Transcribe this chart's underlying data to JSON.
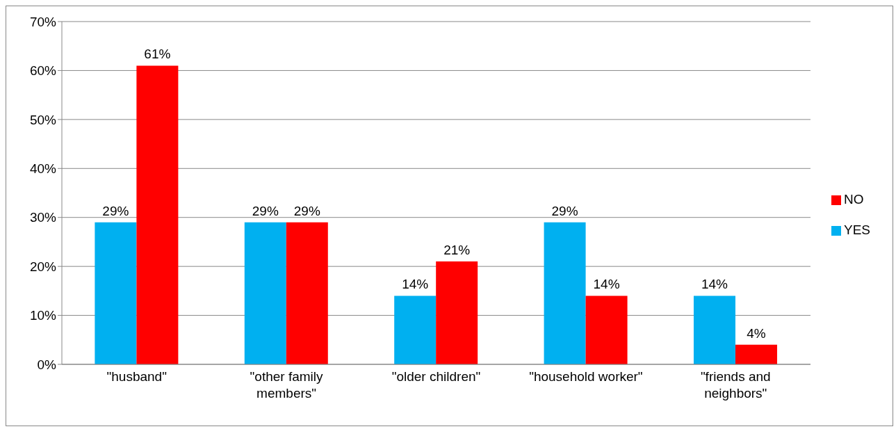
{
  "chart_data": {
    "type": "bar",
    "categories": [
      "\"husband\"",
      "\"other family members\"",
      "\"older children\"",
      "\"household worker\"",
      "\"friends and neighbors\""
    ],
    "series": [
      {
        "name": "YES",
        "color": "#00b0f0",
        "values": [
          29,
          29,
          14,
          29,
          14
        ],
        "value_labels": [
          "29%",
          "29%",
          "14%",
          "29%",
          "14%"
        ]
      },
      {
        "name": "NO",
        "color": "#ff0000",
        "values": [
          61,
          29,
          21,
          14,
          4
        ],
        "value_labels": [
          "61%",
          "29%",
          "21%",
          "14%",
          "4%"
        ]
      }
    ],
    "ylim": [
      0,
      70
    ],
    "yticks": [
      {
        "value": 0,
        "label": "0%"
      },
      {
        "value": 10,
        "label": "10%"
      },
      {
        "value": 20,
        "label": "20%"
      },
      {
        "value": 30,
        "label": "30%"
      },
      {
        "value": 40,
        "label": "40%"
      },
      {
        "value": 50,
        "label": "50%"
      },
      {
        "value": 60,
        "label": "60%"
      },
      {
        "value": 70,
        "label": "70%"
      }
    ],
    "grid": "y",
    "legend": "right"
  }
}
